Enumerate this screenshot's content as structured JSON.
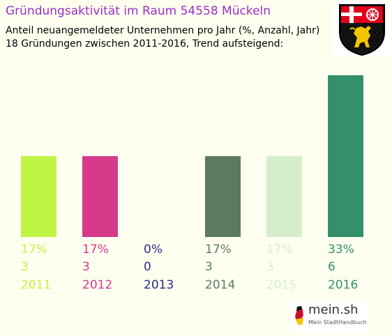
{
  "title": "Gründungsaktivität im Raum 54558 Mückeln",
  "subtitle_line1": "Anteil neuangemeldeter Unternehmen pro Jahr (%, Anzahl, Jahr)",
  "subtitle_line2": "18 Gründungen zwischen 2011-2016, Trend aufsteigend:",
  "colors": {
    "background": "#fffff0",
    "title": "#9a2ec8"
  },
  "crest_icon": "rhineland-palatinate-coat-of-arms-icon",
  "logo": {
    "name": "mein.sh",
    "tagline": "Mein StadtHandbuch",
    "icon": "germany-map-pin-icon"
  },
  "chart_data": {
    "type": "bar",
    "categories": [
      "2011",
      "2012",
      "2013",
      "2014",
      "2015",
      "2016"
    ],
    "values": [
      3,
      3,
      0,
      3,
      3,
      6
    ],
    "percent_labels": [
      "17%",
      "17%",
      "0%",
      "17%",
      "17%",
      "33%"
    ],
    "count_labels": [
      "3",
      "3",
      "0",
      "3",
      "3",
      "6"
    ],
    "colors": [
      "#c0f545",
      "#d63a8a",
      "#2a2a8a",
      "#5a7a62",
      "#d4eecc",
      "#33906a"
    ],
    "ylim": [
      0,
      6
    ],
    "grid": false,
    "title": "Gründungsaktivität im Raum 54558 Mückeln",
    "xlabel": "",
    "ylabel": ""
  }
}
